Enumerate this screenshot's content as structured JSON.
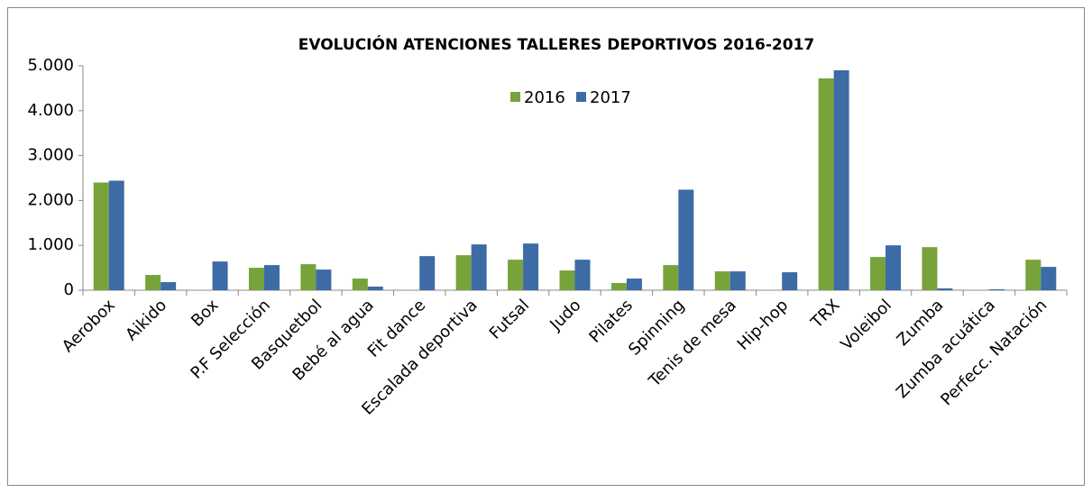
{
  "chart_data": {
    "type": "bar",
    "title": "EVOLUCIÓN ATENCIONES TALLERES DEPORTIVOS 2016-2017",
    "categories": [
      "Aerobox",
      "Aikido",
      "Box",
      "P.F Selección",
      "Basquetbol",
      "Bebé al agua",
      "Fit dance",
      "Escalada deportiva",
      "Futsal",
      "Judo",
      "Pilates",
      "Spinning",
      "Tenis de mesa",
      "Hip-hop",
      "TRX",
      "Voleibol",
      "Zumba",
      "Zumba acuática",
      "Perfecc. Natación"
    ],
    "series": [
      {
        "name": "2016",
        "color": "#77a33a",
        "values": [
          2400,
          340,
          0,
          500,
          580,
          260,
          0,
          780,
          680,
          440,
          160,
          560,
          420,
          0,
          4720,
          740,
          960,
          0,
          680
        ]
      },
      {
        "name": "2017",
        "color": "#3c6ba5",
        "values": [
          2440,
          180,
          640,
          560,
          460,
          80,
          760,
          1020,
          1040,
          680,
          260,
          2240,
          420,
          400,
          4900,
          1000,
          40,
          20,
          520
        ]
      }
    ],
    "ylim": [
      0,
      5000
    ],
    "yticks": [
      0,
      {
        "value": 1000,
        "label": "1.000"
      },
      {
        "value": 2000,
        "label": "2.000"
      },
      {
        "value": 3000,
        "label": "3.000"
      },
      {
        "value": 4000,
        "label": "4.000"
      },
      {
        "value": 5000,
        "label": "5.000"
      }
    ],
    "legend": "top"
  }
}
